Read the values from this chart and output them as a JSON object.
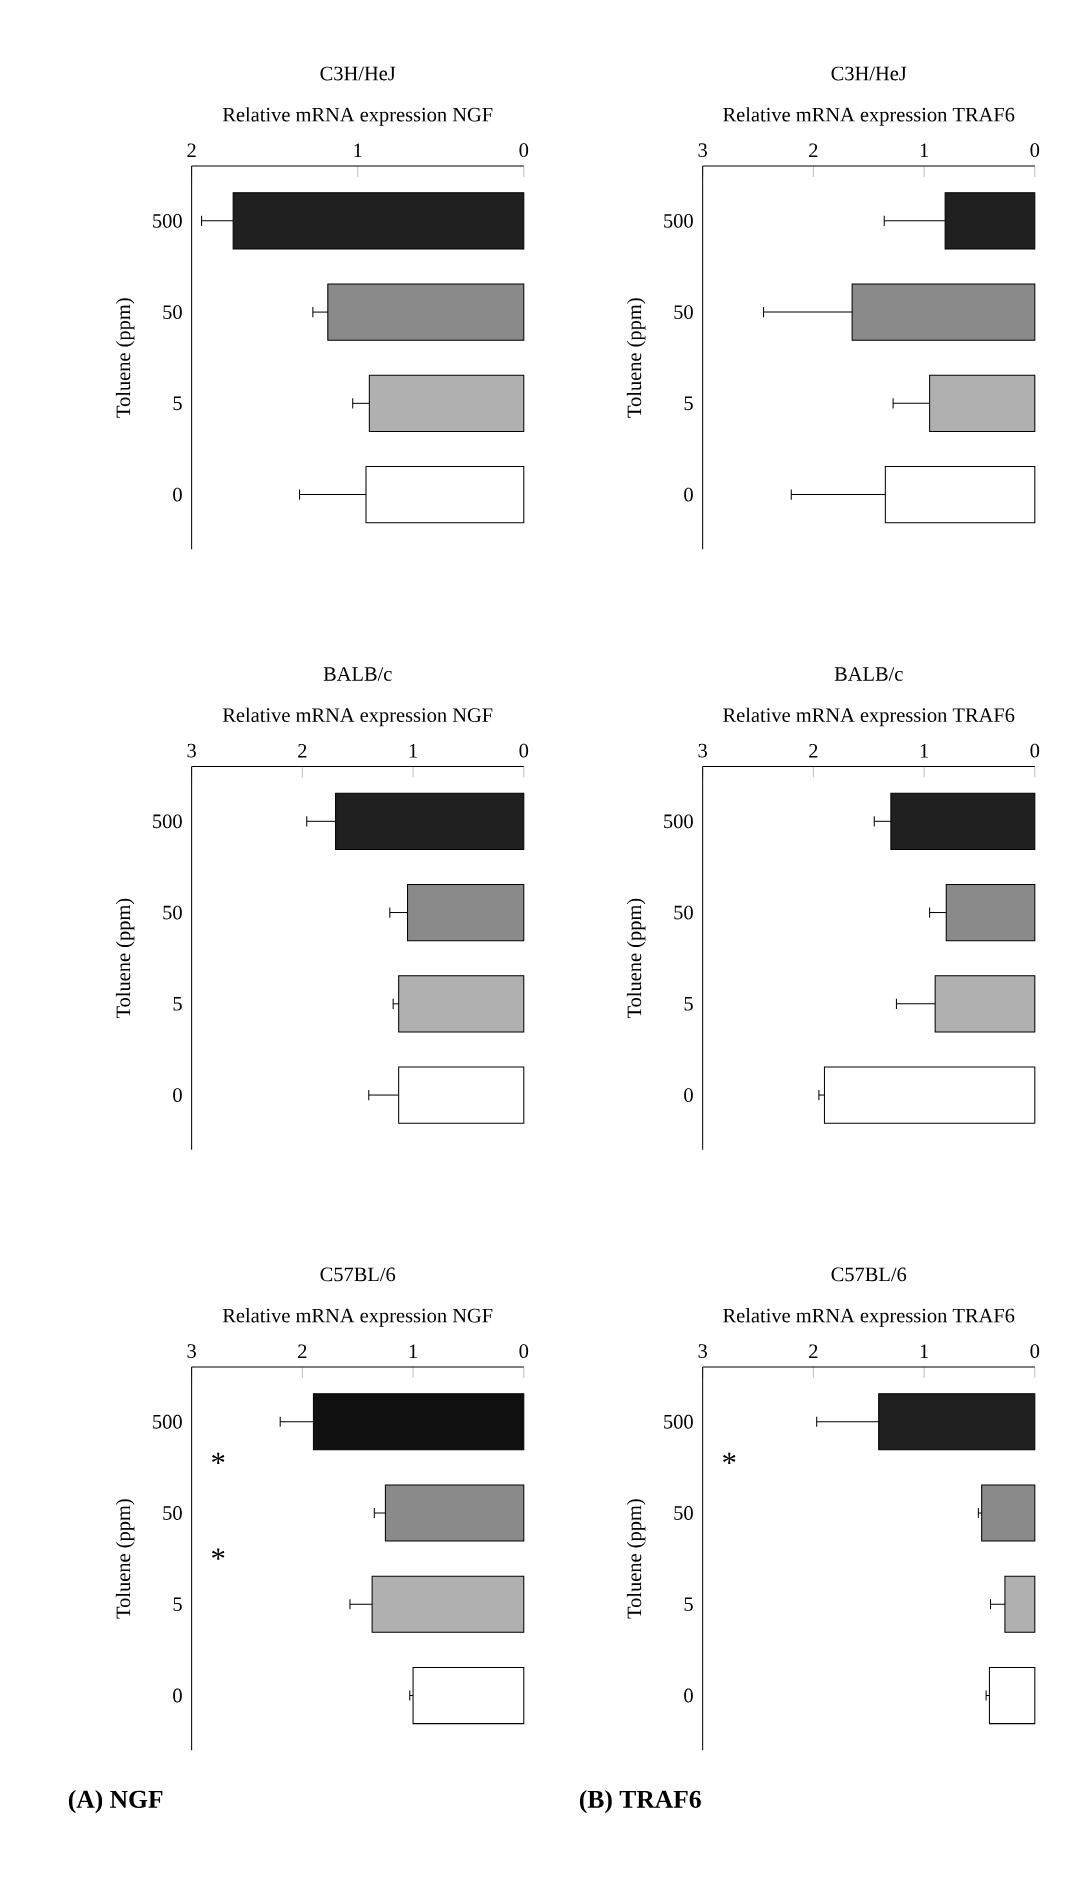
{
  "chart_data": [
    {
      "type": "bar",
      "orientation": "horizontal",
      "title": "C3H/HeJ",
      "xlabel": "Relative mRNA expression NGF",
      "ylabel": "Toluene (ppm)",
      "categories": [
        "500",
        "50",
        "5",
        "0"
      ],
      "values": [
        1.75,
        1.18,
        0.93,
        0.95
      ],
      "errors": [
        0.19,
        0.09,
        0.1,
        0.4
      ],
      "colors": [
        "#202020",
        "#8a8a8a",
        "#b0b0b0",
        "#ffffff"
      ],
      "xlim": [
        2,
        0
      ],
      "xticks": [
        2,
        1,
        0
      ]
    },
    {
      "type": "bar",
      "orientation": "horizontal",
      "title": "C3H/HeJ",
      "xlabel": "Relative mRNA expression TRAF6",
      "ylabel": "Toluene (ppm)",
      "categories": [
        "500",
        "50",
        "5",
        "0"
      ],
      "values": [
        0.81,
        1.65,
        0.95,
        1.35
      ],
      "errors": [
        0.55,
        0.8,
        0.33,
        0.85
      ],
      "colors": [
        "#202020",
        "#8a8a8a",
        "#b0b0b0",
        "#ffffff"
      ],
      "xlim": [
        3,
        0
      ],
      "xticks": [
        3,
        2,
        1,
        0
      ]
    },
    {
      "type": "bar",
      "orientation": "horizontal",
      "title": "BALB/c",
      "xlabel": "Relative mRNA expression NGF",
      "ylabel": "Toluene (ppm)",
      "categories": [
        "500",
        "50",
        "5",
        "0"
      ],
      "values": [
        1.7,
        1.05,
        1.13,
        1.13
      ],
      "errors": [
        0.26,
        0.16,
        0.05,
        0.27
      ],
      "colors": [
        "#202020",
        "#8a8a8a",
        "#b0b0b0",
        "#ffffff"
      ],
      "xlim": [
        3,
        0
      ],
      "xticks": [
        3,
        2,
        1,
        0
      ]
    },
    {
      "type": "bar",
      "orientation": "horizontal",
      "title": "BALB/c",
      "xlabel": "Relative mRNA expression TRAF6",
      "ylabel": "Toluene (ppm)",
      "categories": [
        "500",
        "50",
        "5",
        "0"
      ],
      "values": [
        1.3,
        0.8,
        0.9,
        1.9
      ],
      "errors": [
        0.15,
        0.15,
        0.35,
        0.05
      ],
      "colors": [
        "#202020",
        "#8a8a8a",
        "#b0b0b0",
        "#ffffff"
      ],
      "xlim": [
        3,
        0
      ],
      "xticks": [
        3,
        2,
        1,
        0
      ]
    },
    {
      "type": "bar",
      "orientation": "horizontal",
      "title": "C57BL/6",
      "xlabel": "Relative mRNA expression NGF",
      "ylabel": "Toluene (ppm)",
      "categories": [
        "500",
        "50",
        "5",
        "0"
      ],
      "values": [
        1.9,
        1.25,
        1.37,
        1.0
      ],
      "errors": [
        0.3,
        0.1,
        0.2,
        0.03
      ],
      "colors": [
        "#101010",
        "#8a8a8a",
        "#b0b0b0",
        "#ffffff"
      ],
      "xlim": [
        3,
        0
      ],
      "xticks": [
        3,
        2,
        1,
        0
      ],
      "annotations": [
        "(A) NGF",
        "*",
        "*"
      ]
    },
    {
      "type": "bar",
      "orientation": "horizontal",
      "title": "C57BL/6",
      "xlabel": "Relative mRNA expression TRAF6",
      "ylabel": "Toluene (ppm)",
      "categories": [
        "500",
        "50",
        "5",
        "0"
      ],
      "values": [
        1.41,
        0.48,
        0.27,
        0.41
      ],
      "errors": [
        0.56,
        0.03,
        0.13,
        0.03
      ],
      "colors": [
        "#202020",
        "#8a8a8a",
        "#b0b0b0",
        "#ffffff"
      ],
      "xlim": [
        3,
        0
      ],
      "xticks": [
        3,
        2,
        1,
        0
      ],
      "annotations": [
        "(B) TRAF6",
        "*"
      ]
    }
  ]
}
